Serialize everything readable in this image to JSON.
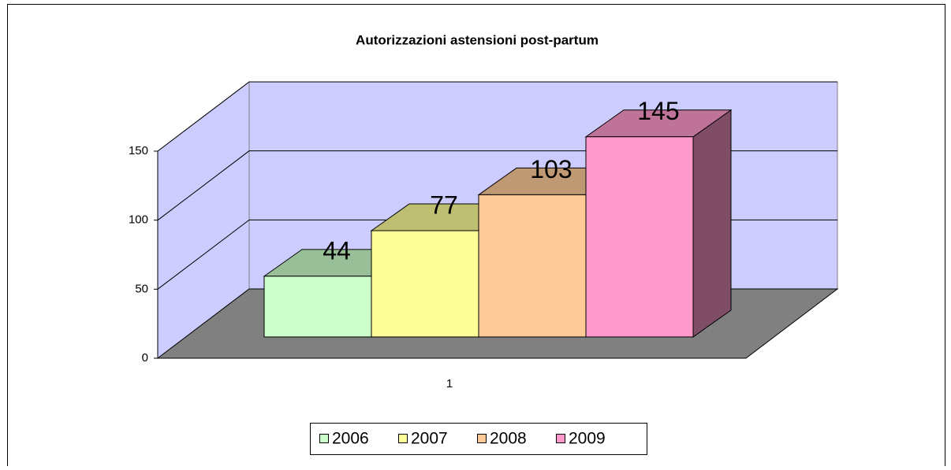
{
  "chart_data": {
    "type": "bar3d",
    "title": "Autorizzazioni astensioni post-partum",
    "categories": [
      "1"
    ],
    "series": [
      {
        "name": "2006",
        "color": "#ccffcc",
        "values": [
          44
        ]
      },
      {
        "name": "2007",
        "color": "#ffff99",
        "values": [
          77
        ]
      },
      {
        "name": "2008",
        "color": "#ffcc99",
        "values": [
          103
        ]
      },
      {
        "name": "2009",
        "color": "#ff99cc",
        "values": [
          145
        ]
      }
    ],
    "ylim": [
      0,
      150
    ],
    "yticks": [
      0,
      50,
      100,
      150
    ],
    "grid": true,
    "legend": "bottom"
  }
}
